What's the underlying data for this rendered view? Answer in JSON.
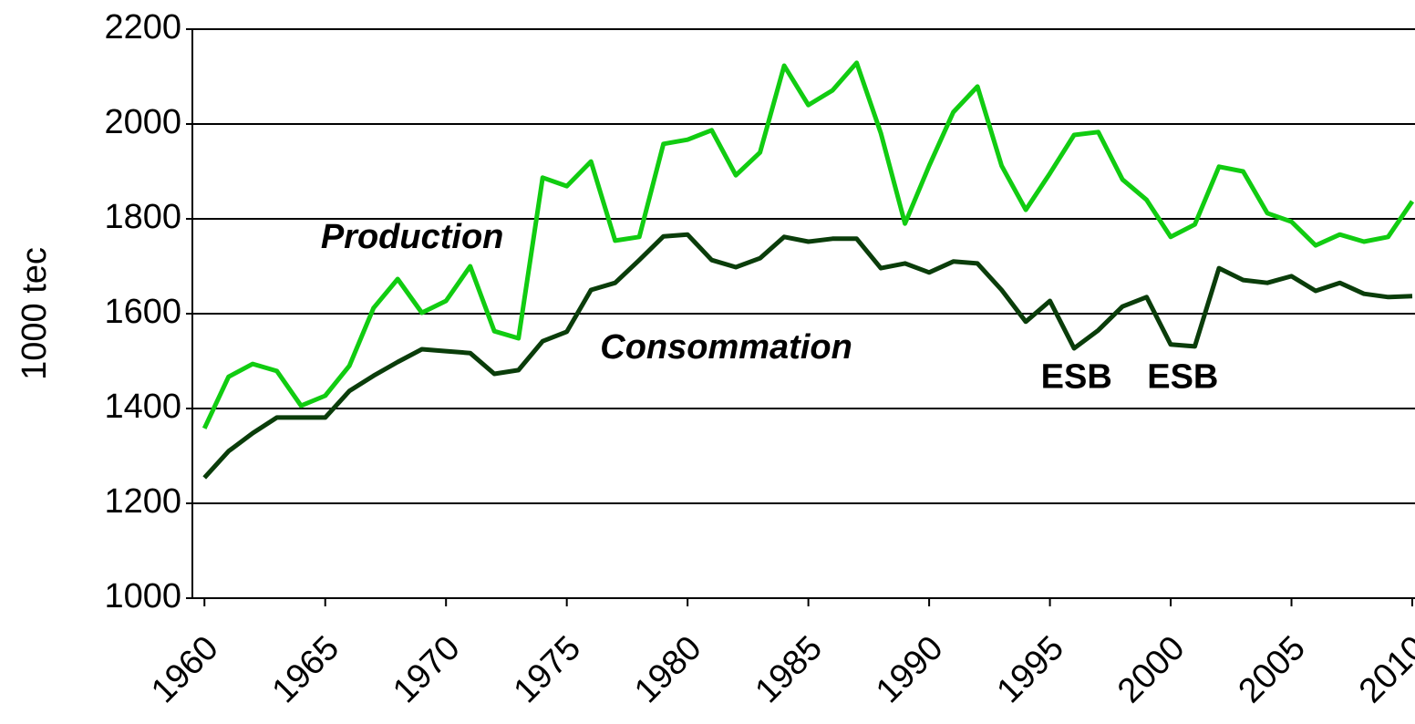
{
  "chart_data": {
    "type": "line",
    "y_label": "1000 tec",
    "x": [
      1960,
      1961,
      1962,
      1963,
      1964,
      1965,
      1966,
      1967,
      1968,
      1969,
      1970,
      1971,
      1972,
      1973,
      1974,
      1975,
      1976,
      1977,
      1978,
      1979,
      1980,
      1981,
      1982,
      1983,
      1984,
      1985,
      1986,
      1987,
      1988,
      1989,
      1990,
      1991,
      1992,
      1993,
      1994,
      1995,
      1996,
      1997,
      1998,
      1999,
      2000,
      2001,
      2002,
      2003,
      2004,
      2005,
      2006,
      2007,
      2008,
      2009,
      2010
    ],
    "series": [
      {
        "name": "Production",
        "color": "#11cc11",
        "values": [
          1358,
          1467,
          1494,
          1479,
          1406,
          1427,
          1490,
          1612,
          1673,
          1602,
          1627,
          1700,
          1563,
          1548,
          1887,
          1869,
          1921,
          1754,
          1762,
          1958,
          1967,
          1987,
          1892,
          1940,
          2123,
          2040,
          2071,
          2129,
          1981,
          1790,
          1912,
          2025,
          2079,
          1912,
          1819,
          1896,
          1977,
          1983,
          1883,
          1840,
          1762,
          1788,
          1910,
          1900,
          1812,
          1794,
          1744,
          1767,
          1752,
          1762,
          1837
        ]
      },
      {
        "name": "Consommation",
        "color": "#0a3d0a",
        "values": [
          1254,
          1310,
          1348,
          1381,
          1381,
          1381,
          1437,
          1469,
          1498,
          1525,
          1521,
          1517,
          1473,
          1481,
          1542,
          1562,
          1650,
          1665,
          1713,
          1763,
          1767,
          1713,
          1698,
          1717,
          1762,
          1752,
          1758,
          1758,
          1696,
          1706,
          1687,
          1710,
          1706,
          1650,
          1583,
          1627,
          1527,
          1565,
          1615,
          1635,
          1535,
          1531,
          1696,
          1671,
          1665,
          1679,
          1648,
          1665,
          1642,
          1635,
          1637
        ]
      }
    ],
    "annotations": [
      {
        "text": "ESB",
        "x": 1996.1,
        "y": 1463,
        "color": "#000000"
      },
      {
        "text": "ESB",
        "x": 2000.5,
        "y": 1463,
        "color": "#000000"
      }
    ],
    "xlim": [
      1959.5,
      2010
    ],
    "xticks": [
      1960,
      1965,
      1970,
      1975,
      1980,
      1985,
      1990,
      1995,
      2000,
      2005,
      2010
    ],
    "ylim": [
      1000,
      2200
    ],
    "yticks": [
      1000,
      1200,
      1400,
      1600,
      1800,
      2000,
      2200
    ],
    "grid": true
  }
}
